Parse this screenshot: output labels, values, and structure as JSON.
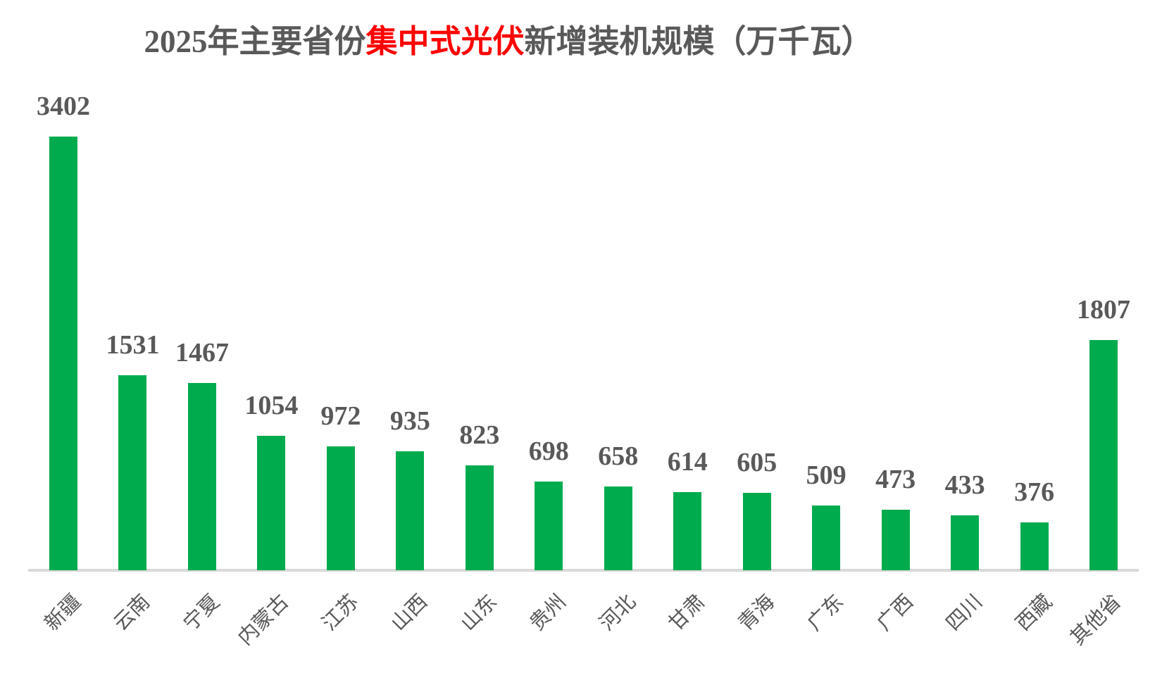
{
  "chart_data": {
    "type": "bar",
    "title": {
      "prefix": "2025年主要省份",
      "highlight": "集中式光伏",
      "suffix": "新增装机规模（万千瓦）"
    },
    "categories": [
      "新疆",
      "云南",
      "宁夏",
      "内蒙古",
      "江苏",
      "山西",
      "山东",
      "贵州",
      "河北",
      "甘肃",
      "青海",
      "广东",
      "广西",
      "四川",
      "西藏",
      "其他省"
    ],
    "values": [
      3402,
      1531,
      1467,
      1054,
      972,
      935,
      823,
      698,
      658,
      614,
      605,
      509,
      473,
      433,
      376,
      1807
    ],
    "ylim": [
      0,
      3500
    ],
    "grid": "off",
    "legend": "none",
    "y_axis": "hidden",
    "value_labels": "above-bars",
    "x_label_rotation_deg": 45,
    "colors": {
      "bar": "#00AB4E",
      "text": "#595959",
      "title_highlight": "#FF0000",
      "axis_line": "#D9D9D9",
      "background": "#FFFFFF"
    }
  }
}
